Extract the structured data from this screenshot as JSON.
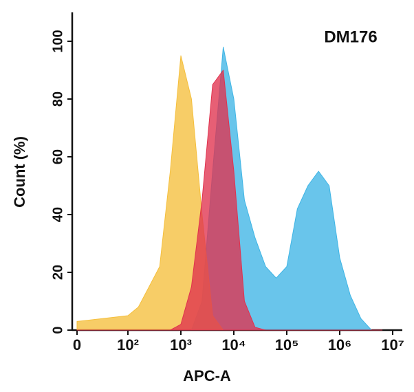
{
  "chart_data": {
    "type": "area",
    "annotation": "DM176",
    "xlabel": "APC-A",
    "ylabel": "Count (%)",
    "xscale": "biexponential",
    "ylim": [
      0,
      110
    ],
    "yticks": [
      0,
      20,
      40,
      60,
      80,
      100
    ],
    "xticks": [
      0,
      {
        "value": 100,
        "label": "10²"
      },
      {
        "value": 1000,
        "label": "10³"
      },
      {
        "value": 10000,
        "label": "10⁴"
      },
      {
        "value": 100000,
        "label": "10⁵"
      },
      {
        "value": 1000000,
        "label": "10⁶"
      },
      {
        "value": 10000000,
        "label": "10⁷"
      }
    ],
    "x": [
      0,
      100,
      158,
      251,
      398,
      631,
      1000,
      1585,
      2512,
      3981,
      6310,
      10000,
      15849,
      25119,
      39811,
      63096,
      100000,
      158489,
      251189,
      398107,
      630957,
      1000000,
      1584893,
      2511886,
      3981072,
      6309573
    ],
    "series": [
      {
        "color": "#3fb5e5",
        "values": [
          0,
          0,
          0,
          0,
          0,
          0,
          0,
          0,
          10,
          55,
          98,
          80,
          45,
          32,
          22,
          18,
          22,
          42,
          50,
          55,
          50,
          25,
          12,
          4,
          0,
          0
        ]
      },
      {
        "color": "#f5bf3c",
        "values": [
          3,
          5,
          8,
          15,
          22,
          55,
          95,
          80,
          40,
          5,
          0,
          0,
          0,
          0,
          0,
          0,
          0,
          0,
          0,
          0,
          0,
          0,
          0,
          0,
          0,
          0
        ]
      },
      {
        "color": "#e0324e",
        "values": [
          0,
          0,
          0,
          0,
          0,
          0,
          2,
          15,
          45,
          85,
          90,
          55,
          10,
          1,
          0,
          0,
          0,
          0,
          0,
          0,
          0,
          0,
          0,
          0,
          0,
          0
        ]
      }
    ]
  }
}
